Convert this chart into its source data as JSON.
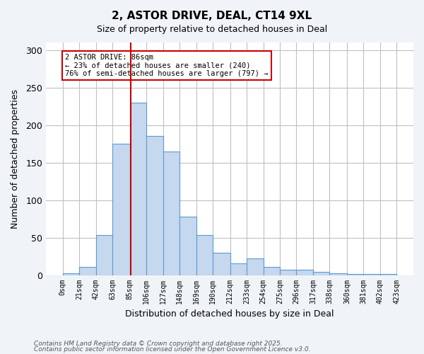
{
  "title_line1": "2, ASTOR DRIVE, DEAL, CT14 9XL",
  "title_line2": "Size of property relative to detached houses in Deal",
  "xlabel": "Distribution of detached houses by size in Deal",
  "ylabel": "Number of detached properties",
  "bin_edges": [
    0,
    21,
    42,
    63,
    85,
    106,
    127,
    148,
    169,
    190,
    212,
    233,
    254,
    275,
    296,
    317,
    338,
    360,
    381,
    402,
    423
  ],
  "bar_heights": [
    2,
    11,
    53,
    175,
    230,
    185,
    165,
    78,
    53,
    30,
    16,
    22,
    11,
    7,
    7,
    4,
    2,
    1,
    1,
    1
  ],
  "bar_facecolor": "#c5d8ed",
  "bar_edgecolor": "#5b9bd5",
  "property_size": 86,
  "vline_color": "#cc0000",
  "annotation_text": "2 ASTOR DRIVE: 86sqm\n← 23% of detached houses are smaller (240)\n76% of semi-detached houses are larger (797) →",
  "annotation_box_edgecolor": "#cc0000",
  "annotation_box_facecolor": "white",
  "ylim": [
    0,
    310
  ],
  "yticks": [
    0,
    50,
    100,
    150,
    200,
    250,
    300
  ],
  "footnote_line1": "Contains HM Land Registry data © Crown copyright and database right 2025.",
  "footnote_line2": "Contains public sector information licensed under the Open Government Licence v3.0.",
  "background_color": "#f0f4f8",
  "plot_background_color": "white",
  "grid_color": "#c0c0c0"
}
